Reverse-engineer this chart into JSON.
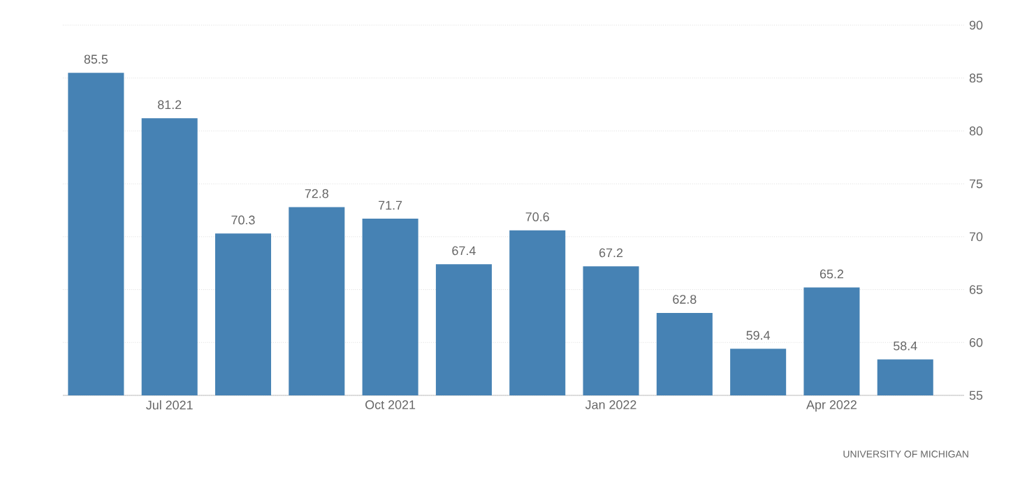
{
  "chart_data": {
    "type": "bar",
    "categories": [
      null,
      "Jul 2021",
      null,
      null,
      "Oct 2021",
      null,
      null,
      "Jan 2022",
      null,
      null,
      "Apr 2022",
      null
    ],
    "values": [
      85.5,
      81.2,
      70.3,
      72.8,
      71.7,
      67.4,
      70.6,
      67.2,
      62.8,
      59.4,
      65.2,
      58.4
    ],
    "color": "#4682b4",
    "ylim": [
      55,
      90
    ],
    "yticks": [
      55,
      60,
      65,
      70,
      75,
      80,
      85,
      90
    ],
    "grid": "y",
    "data_labels": true,
    "annotations": [
      "UNIVERSITY OF MICHIGAN"
    ]
  }
}
